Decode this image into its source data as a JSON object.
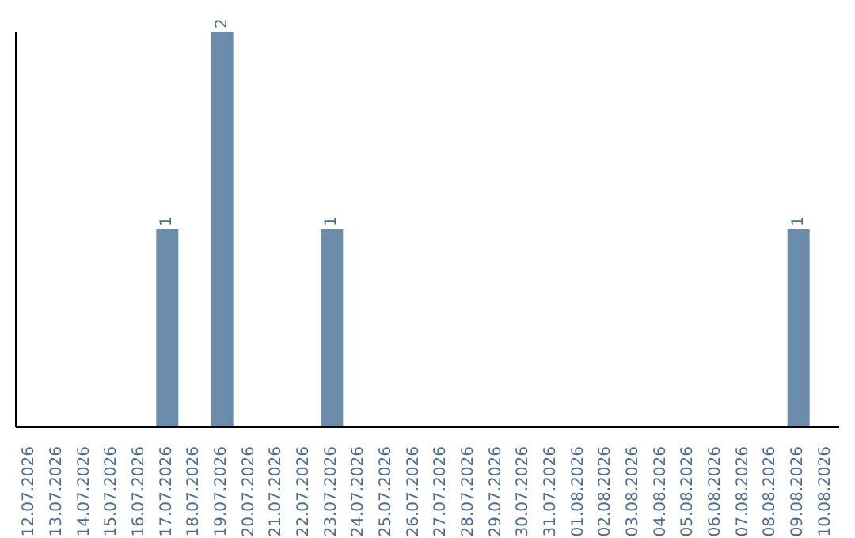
{
  "chart_data": {
    "type": "bar",
    "categories": [
      "12.07.2026",
      "13.07.2026",
      "14.07.2026",
      "15.07.2026",
      "16.07.2026",
      "17.07.2026",
      "18.07.2026",
      "19.07.2026",
      "20.07.2026",
      "21.07.2026",
      "22.07.2026",
      "23.07.2026",
      "24.07.2026",
      "25.07.2026",
      "26.07.2026",
      "27.07.2026",
      "28.07.2026",
      "29.07.2026",
      "30.07.2026",
      "31.07.2026",
      "01.08.2026",
      "02.08.2026",
      "03.08.2026",
      "04.08.2026",
      "05.08.2026",
      "06.08.2026",
      "07.08.2026",
      "08.08.2026",
      "09.08.2026",
      "10.08.2026"
    ],
    "values": [
      0,
      0,
      0,
      0,
      0,
      1,
      0,
      2,
      0,
      0,
      0,
      1,
      0,
      0,
      0,
      0,
      0,
      0,
      0,
      0,
      0,
      0,
      0,
      0,
      0,
      0,
      0,
      0,
      1,
      0
    ],
    "value_labels": [
      null,
      null,
      null,
      null,
      null,
      "1",
      null,
      "2",
      null,
      null,
      null,
      "1",
      null,
      null,
      null,
      null,
      null,
      null,
      null,
      null,
      null,
      null,
      null,
      null,
      null,
      null,
      null,
      null,
      "1",
      null
    ],
    "color": "#6b8cab",
    "tick_labels": "x"
  }
}
